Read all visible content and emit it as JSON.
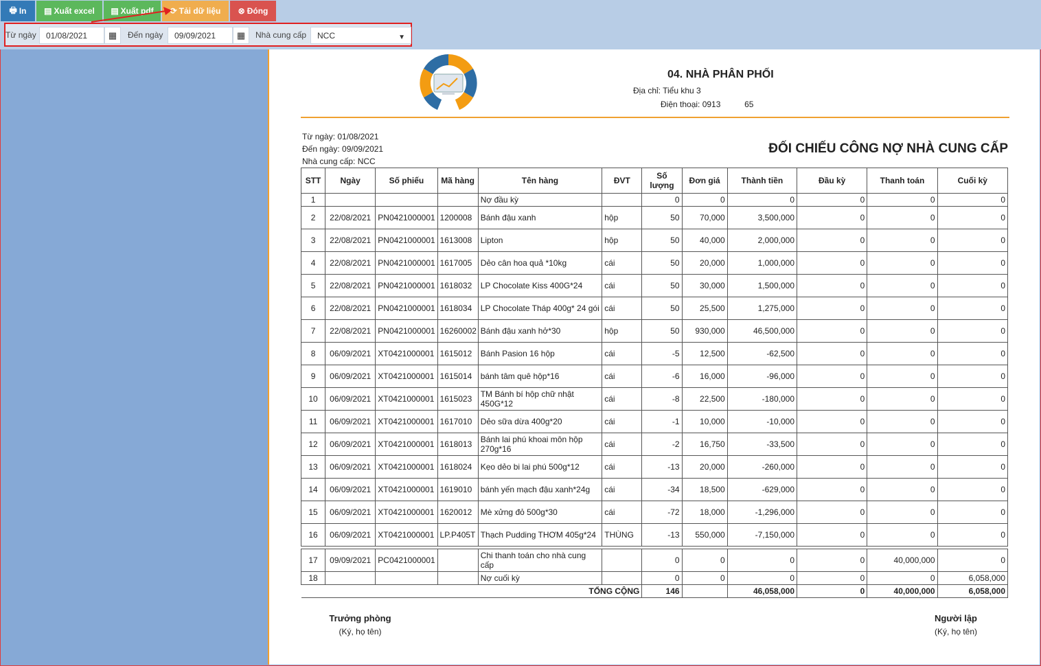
{
  "toolbar": {
    "print_label": "In",
    "excel_label": "Xuất excel",
    "pdf_label": "Xuất pdf",
    "load_label": "Tải dữ liệu",
    "close_label": "Đóng"
  },
  "filter": {
    "from_label": "Từ ngày",
    "from_value": "01/08/2021",
    "to_label": "Đến ngày",
    "to_value": "09/09/2021",
    "supplier_label": "Nhà cung cấp",
    "supplier_value": "NCC"
  },
  "report": {
    "company": "04. NHÀ PHÂN PHỐI",
    "address": "Địa chỉ: Tiểu khu 3",
    "phone_prefix": "Điện thoại: 0913",
    "phone_suffix": "65",
    "from_date": "Từ ngày: 01/08/2021",
    "to_date": "Đến ngày: 09/09/2021",
    "supplier": "Nhà cung cấp: NCC",
    "title": "ĐỐI CHIẾU CÔNG NỢ NHÀ CUNG CẤP",
    "columns": [
      "STT",
      "Ngày",
      "Số phiếu",
      "Mã hàng",
      "Tên hàng",
      "ĐVT",
      "Số lượng",
      "Đơn giá",
      "Thành tiền",
      "Đầu kỳ",
      "Thanh toán",
      "Cuối kỳ"
    ],
    "rows": [
      [
        "1",
        "",
        "",
        "",
        "Nợ đầu kỳ",
        "",
        "0",
        "0",
        "0",
        "0",
        "0",
        "0"
      ],
      [
        "2",
        "22/08/2021",
        "PN0421000001",
        "1200008",
        "Bánh đậu xanh",
        "hộp",
        "50",
        "70,000",
        "3,500,000",
        "0",
        "0",
        "0"
      ],
      [
        "3",
        "22/08/2021",
        "PN0421000001",
        "1613008",
        "Lipton",
        "hộp",
        "50",
        "40,000",
        "2,000,000",
        "0",
        "0",
        "0"
      ],
      [
        "4",
        "22/08/2021",
        "PN0421000001",
        "1617005",
        "Dẻo cân hoa quả *10kg",
        "cái",
        "50",
        "20,000",
        "1,000,000",
        "0",
        "0",
        "0"
      ],
      [
        "5",
        "22/08/2021",
        "PN0421000001",
        "1618032",
        "LP Chocolate Kiss 400G*24",
        "cái",
        "50",
        "30,000",
        "1,500,000",
        "0",
        "0",
        "0"
      ],
      [
        "6",
        "22/08/2021",
        "PN0421000001",
        "1618034",
        "LP Chocolate Tháp 400g* 24 gói",
        "cái",
        "50",
        "25,500",
        "1,275,000",
        "0",
        "0",
        "0"
      ],
      [
        "7",
        "22/08/2021",
        "PN0421000001",
        "16260002",
        "Bánh đậu xanh hở*30",
        "hộp",
        "50",
        "930,000",
        "46,500,000",
        "0",
        "0",
        "0"
      ],
      [
        "8",
        "06/09/2021",
        "XT0421000001",
        "1615012",
        "Bánh Pasion 16 hộp",
        "cái",
        "-5",
        "12,500",
        "-62,500",
        "0",
        "0",
        "0"
      ],
      [
        "9",
        "06/09/2021",
        "XT0421000001",
        "1615014",
        "bánh tâm quê hộp*16",
        "cái",
        "-6",
        "16,000",
        "-96,000",
        "0",
        "0",
        "0"
      ],
      [
        "10",
        "06/09/2021",
        "XT0421000001",
        "1615023",
        "TM Bánh bí hộp chữ nhật 450G*12",
        "cái",
        "-8",
        "22,500",
        "-180,000",
        "0",
        "0",
        "0"
      ],
      [
        "11",
        "06/09/2021",
        "XT0421000001",
        "1617010",
        "Dẻo sữa dừa 400g*20",
        "cái",
        "-1",
        "10,000",
        "-10,000",
        "0",
        "0",
        "0"
      ],
      [
        "12",
        "06/09/2021",
        "XT0421000001",
        "1618013",
        "Bánh lai phú khoai môn hộp 270g*16",
        "cái",
        "-2",
        "16,750",
        "-33,500",
        "0",
        "0",
        "0"
      ],
      [
        "13",
        "06/09/2021",
        "XT0421000001",
        "1618024",
        "Kẹo dẻo bi lai phú 500g*12",
        "cái",
        "-13",
        "20,000",
        "-260,000",
        "0",
        "0",
        "0"
      ],
      [
        "14",
        "06/09/2021",
        "XT0421000001",
        "1619010",
        "bánh yến mạch đậu xanh*24g",
        "cái",
        "-34",
        "18,500",
        "-629,000",
        "0",
        "0",
        "0"
      ],
      [
        "15",
        "06/09/2021",
        "XT0421000001",
        "1620012",
        "Mè xửng đỏ 500g*30",
        "cái",
        "-72",
        "18,000",
        "-1,296,000",
        "0",
        "0",
        "0"
      ],
      [
        "16",
        "06/09/2021",
        "XT0421000001",
        "LP.P405T",
        "Thạch Pudding THƠM 405g*24",
        "THÙNG",
        "-13",
        "550,000",
        "-7,150,000",
        "0",
        "0",
        "0"
      ],
      [
        "17",
        "09/09/2021",
        "PC0421000001",
        "",
        "Chi thanh toán cho nhà cung cấp",
        "",
        "0",
        "0",
        "0",
        "0",
        "40,000,000",
        "0"
      ],
      [
        "18",
        "",
        "",
        "",
        "Nợ cuối kỳ",
        "",
        "0",
        "0",
        "0",
        "0",
        "0",
        "6,058,000"
      ]
    ],
    "total": {
      "label": "TỔNG CỘNG",
      "qty": "146",
      "price": "",
      "amount": "46,058,000",
      "opening": "0",
      "payment": "40,000,000",
      "closing": "6,058,000"
    },
    "sign_left_title": "Trưởng phòng",
    "sign_left_note": "(Ký, họ tên)",
    "sign_right_title": "Người lập",
    "sign_right_note": "(Ký, họ tên)"
  }
}
